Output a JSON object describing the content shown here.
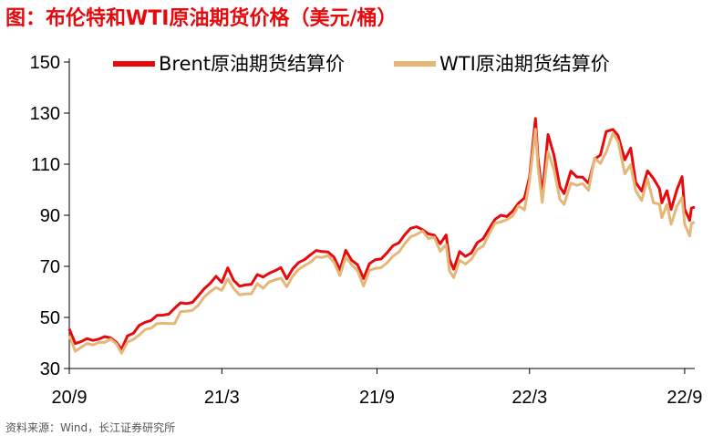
{
  "title": "图：布伦特和WTI原油期货价格（美元/桶）",
  "source": "资料来源：Wind，长江证券研究所",
  "chart_data": {
    "type": "line",
    "title": "图：布伦特和WTI原油期货价格（美元/桶）",
    "xlabel": "",
    "ylabel": "",
    "ylim": [
      30,
      150
    ],
    "yticks": [
      30,
      50,
      70,
      90,
      110,
      130,
      150
    ],
    "xlim": [
      "2020-09-01",
      "2022-09-13"
    ],
    "xticks": [
      {
        "label": "20/9",
        "date": "2020-09-01"
      },
      {
        "label": "21/3",
        "date": "2021-03-01"
      },
      {
        "label": "21/9",
        "date": "2021-09-01"
      },
      {
        "label": "22/3",
        "date": "2022-03-01"
      },
      {
        "label": "22/9",
        "date": "2022-09-01"
      }
    ],
    "grid": false,
    "legend_position": "top",
    "series": [
      {
        "name": "Brent原油期货结算价",
        "color": "#e8090d",
        "points": [
          [
            "2020-09-01",
            45.5
          ],
          [
            "2020-09-08",
            39.8
          ],
          [
            "2020-09-15",
            40.5
          ],
          [
            "2020-09-22",
            41.7
          ],
          [
            "2020-09-29",
            41.0
          ],
          [
            "2020-10-06",
            41.5
          ],
          [
            "2020-10-13",
            42.5
          ],
          [
            "2020-10-20",
            42.0
          ],
          [
            "2020-10-27",
            40.2
          ],
          [
            "2020-11-02",
            37.5
          ],
          [
            "2020-11-09",
            42.8
          ],
          [
            "2020-11-16",
            43.8
          ],
          [
            "2020-11-23",
            46.9
          ],
          [
            "2020-11-30",
            48.1
          ],
          [
            "2020-12-07",
            48.8
          ],
          [
            "2020-12-14",
            50.8
          ],
          [
            "2020-12-21",
            50.9
          ],
          [
            "2020-12-28",
            51.3
          ],
          [
            "2021-01-04",
            53.6
          ],
          [
            "2021-01-11",
            55.7
          ],
          [
            "2021-01-18",
            55.4
          ],
          [
            "2021-01-25",
            55.9
          ],
          [
            "2021-02-01",
            58.5
          ],
          [
            "2021-02-08",
            61.2
          ],
          [
            "2021-02-15",
            63.3
          ],
          [
            "2021-02-22",
            66.1
          ],
          [
            "2021-03-01",
            63.7
          ],
          [
            "2021-03-08",
            69.4
          ],
          [
            "2021-03-15",
            64.5
          ],
          [
            "2021-03-22",
            62.2
          ],
          [
            "2021-03-29",
            62.7
          ],
          [
            "2021-04-05",
            63.0
          ],
          [
            "2021-04-12",
            66.8
          ],
          [
            "2021-04-19",
            65.8
          ],
          [
            "2021-04-26",
            67.3
          ],
          [
            "2021-05-03",
            68.3
          ],
          [
            "2021-05-10",
            69.5
          ],
          [
            "2021-05-17",
            65.1
          ],
          [
            "2021-05-24",
            69.0
          ],
          [
            "2021-05-31",
            71.5
          ],
          [
            "2021-06-07",
            72.6
          ],
          [
            "2021-06-14",
            74.5
          ],
          [
            "2021-06-21",
            76.2
          ],
          [
            "2021-06-28",
            75.8
          ],
          [
            "2021-07-05",
            75.6
          ],
          [
            "2021-07-12",
            73.6
          ],
          [
            "2021-07-19",
            68.6
          ],
          [
            "2021-07-26",
            76.3
          ],
          [
            "2021-08-02",
            72.4
          ],
          [
            "2021-08-09",
            70.6
          ],
          [
            "2021-08-16",
            65.2
          ],
          [
            "2021-08-23",
            71.0
          ],
          [
            "2021-08-30",
            72.6
          ],
          [
            "2021-09-06",
            72.9
          ],
          [
            "2021-09-13",
            75.3
          ],
          [
            "2021-09-20",
            78.1
          ],
          [
            "2021-09-27",
            79.2
          ],
          [
            "2021-10-04",
            82.4
          ],
          [
            "2021-10-11",
            84.9
          ],
          [
            "2021-10-18",
            85.5
          ],
          [
            "2021-10-25",
            84.4
          ],
          [
            "2021-11-01",
            82.7
          ],
          [
            "2021-11-08",
            82.2
          ],
          [
            "2021-11-15",
            78.9
          ],
          [
            "2021-11-22",
            82.3
          ],
          [
            "2021-11-26",
            72.7
          ],
          [
            "2021-12-01",
            68.9
          ],
          [
            "2021-12-08",
            75.8
          ],
          [
            "2021-12-15",
            73.9
          ],
          [
            "2021-12-22",
            75.3
          ],
          [
            "2021-12-29",
            79.3
          ],
          [
            "2022-01-05",
            80.8
          ],
          [
            "2022-01-12",
            84.7
          ],
          [
            "2022-01-19",
            88.4
          ],
          [
            "2022-01-26",
            90.0
          ],
          [
            "2022-02-02",
            89.5
          ],
          [
            "2022-02-09",
            91.6
          ],
          [
            "2022-02-16",
            94.8
          ],
          [
            "2022-02-23",
            96.8
          ],
          [
            "2022-03-01",
            105.0
          ],
          [
            "2022-03-08",
            127.9
          ],
          [
            "2022-03-11",
            112.7
          ],
          [
            "2022-03-16",
            98.0
          ],
          [
            "2022-03-23",
            121.6
          ],
          [
            "2022-03-30",
            113.5
          ],
          [
            "2022-04-06",
            101.1
          ],
          [
            "2022-04-11",
            98.5
          ],
          [
            "2022-04-19",
            107.3
          ],
          [
            "2022-04-26",
            105.0
          ],
          [
            "2022-05-03",
            104.9
          ],
          [
            "2022-05-10",
            102.5
          ],
          [
            "2022-05-17",
            111.9
          ],
          [
            "2022-05-24",
            113.6
          ],
          [
            "2022-05-31",
            122.8
          ],
          [
            "2022-06-08",
            123.6
          ],
          [
            "2022-06-14",
            121.2
          ],
          [
            "2022-06-22",
            111.7
          ],
          [
            "2022-06-29",
            116.3
          ],
          [
            "2022-07-05",
            102.8
          ],
          [
            "2022-07-12",
            99.5
          ],
          [
            "2022-07-19",
            107.4
          ],
          [
            "2022-07-26",
            104.4
          ],
          [
            "2022-08-02",
            100.5
          ],
          [
            "2022-08-05",
            94.9
          ],
          [
            "2022-08-11",
            99.6
          ],
          [
            "2022-08-16",
            92.3
          ],
          [
            "2022-08-23",
            100.2
          ],
          [
            "2022-08-29",
            105.1
          ],
          [
            "2022-09-01",
            92.4
          ],
          [
            "2022-09-07",
            88.0
          ],
          [
            "2022-09-09",
            92.8
          ],
          [
            "2022-09-13",
            93.2
          ]
        ]
      },
      {
        "name": "WTI原油期货结算价",
        "color": "#e5b776",
        "points": [
          [
            "2020-09-01",
            42.8
          ],
          [
            "2020-09-08",
            36.8
          ],
          [
            "2020-09-15",
            38.3
          ],
          [
            "2020-09-22",
            39.8
          ],
          [
            "2020-09-29",
            39.2
          ],
          [
            "2020-10-06",
            40.2
          ],
          [
            "2020-10-13",
            40.2
          ],
          [
            "2020-10-20",
            41.5
          ],
          [
            "2020-10-27",
            39.6
          ],
          [
            "2020-11-02",
            36.0
          ],
          [
            "2020-11-09",
            40.3
          ],
          [
            "2020-11-16",
            41.4
          ],
          [
            "2020-11-23",
            43.1
          ],
          [
            "2020-11-30",
            45.3
          ],
          [
            "2020-12-07",
            45.8
          ],
          [
            "2020-12-14",
            47.6
          ],
          [
            "2020-12-21",
            47.7
          ],
          [
            "2020-12-28",
            47.6
          ],
          [
            "2021-01-04",
            47.6
          ],
          [
            "2021-01-11",
            52.3
          ],
          [
            "2021-01-18",
            52.4
          ],
          [
            "2021-01-25",
            52.8
          ],
          [
            "2021-02-01",
            54.8
          ],
          [
            "2021-02-08",
            58.0
          ],
          [
            "2021-02-15",
            60.0
          ],
          [
            "2021-02-22",
            61.7
          ],
          [
            "2021-03-01",
            60.6
          ],
          [
            "2021-03-08",
            65.1
          ],
          [
            "2021-03-15",
            61.3
          ],
          [
            "2021-03-22",
            58.8
          ],
          [
            "2021-03-29",
            59.2
          ],
          [
            "2021-04-05",
            59.3
          ],
          [
            "2021-04-12",
            63.2
          ],
          [
            "2021-04-19",
            61.4
          ],
          [
            "2021-04-26",
            63.9
          ],
          [
            "2021-05-03",
            64.7
          ],
          [
            "2021-05-10",
            65.4
          ],
          [
            "2021-05-17",
            62.0
          ],
          [
            "2021-05-24",
            66.1
          ],
          [
            "2021-05-31",
            68.8
          ],
          [
            "2021-06-07",
            70.3
          ],
          [
            "2021-06-14",
            71.6
          ],
          [
            "2021-06-21",
            73.7
          ],
          [
            "2021-06-28",
            73.5
          ],
          [
            "2021-07-05",
            74.2
          ],
          [
            "2021-07-12",
            71.6
          ],
          [
            "2021-07-19",
            66.4
          ],
          [
            "2021-07-26",
            73.6
          ],
          [
            "2021-08-02",
            70.6
          ],
          [
            "2021-08-09",
            68.3
          ],
          [
            "2021-08-16",
            62.3
          ],
          [
            "2021-08-23",
            68.4
          ],
          [
            "2021-08-30",
            69.2
          ],
          [
            "2021-09-06",
            69.5
          ],
          [
            "2021-09-13",
            71.4
          ],
          [
            "2021-09-20",
            74.0
          ],
          [
            "2021-09-27",
            75.6
          ],
          [
            "2021-10-04",
            78.9
          ],
          [
            "2021-10-11",
            81.6
          ],
          [
            "2021-10-18",
            82.5
          ],
          [
            "2021-10-25",
            83.9
          ],
          [
            "2021-11-01",
            80.9
          ],
          [
            "2021-11-08",
            81.4
          ],
          [
            "2021-11-15",
            75.9
          ],
          [
            "2021-11-22",
            78.5
          ],
          [
            "2021-11-26",
            68.2
          ],
          [
            "2021-12-01",
            65.6
          ],
          [
            "2021-12-08",
            72.4
          ],
          [
            "2021-12-15",
            70.9
          ],
          [
            "2021-12-22",
            72.8
          ],
          [
            "2021-12-29",
            76.6
          ],
          [
            "2022-01-05",
            77.9
          ],
          [
            "2022-01-12",
            82.6
          ],
          [
            "2022-01-19",
            86.9
          ],
          [
            "2022-01-26",
            87.4
          ],
          [
            "2022-02-02",
            88.3
          ],
          [
            "2022-02-09",
            89.7
          ],
          [
            "2022-02-16",
            93.7
          ],
          [
            "2022-02-23",
            92.1
          ],
          [
            "2022-03-01",
            103.4
          ],
          [
            "2022-03-08",
            123.7
          ],
          [
            "2022-03-11",
            109.3
          ],
          [
            "2022-03-16",
            95.0
          ],
          [
            "2022-03-23",
            114.9
          ],
          [
            "2022-03-30",
            107.8
          ],
          [
            "2022-04-06",
            96.2
          ],
          [
            "2022-04-11",
            94.3
          ],
          [
            "2022-04-19",
            102.6
          ],
          [
            "2022-04-26",
            101.7
          ],
          [
            "2022-05-03",
            102.4
          ],
          [
            "2022-05-10",
            99.8
          ],
          [
            "2022-05-17",
            112.4
          ],
          [
            "2022-05-24",
            110.3
          ],
          [
            "2022-05-31",
            114.7
          ],
          [
            "2022-06-08",
            122.1
          ],
          [
            "2022-06-14",
            118.9
          ],
          [
            "2022-06-22",
            106.2
          ],
          [
            "2022-06-29",
            109.8
          ],
          [
            "2022-07-05",
            99.5
          ],
          [
            "2022-07-12",
            95.8
          ],
          [
            "2022-07-19",
            104.2
          ],
          [
            "2022-07-26",
            94.9
          ],
          [
            "2022-08-02",
            94.4
          ],
          [
            "2022-08-05",
            89.0
          ],
          [
            "2022-08-11",
            94.3
          ],
          [
            "2022-08-16",
            86.5
          ],
          [
            "2022-08-23",
            93.7
          ],
          [
            "2022-08-29",
            97.0
          ],
          [
            "2022-09-01",
            86.6
          ],
          [
            "2022-09-07",
            81.9
          ],
          [
            "2022-09-09",
            86.8
          ],
          [
            "2022-09-13",
            87.3
          ]
        ]
      }
    ]
  }
}
